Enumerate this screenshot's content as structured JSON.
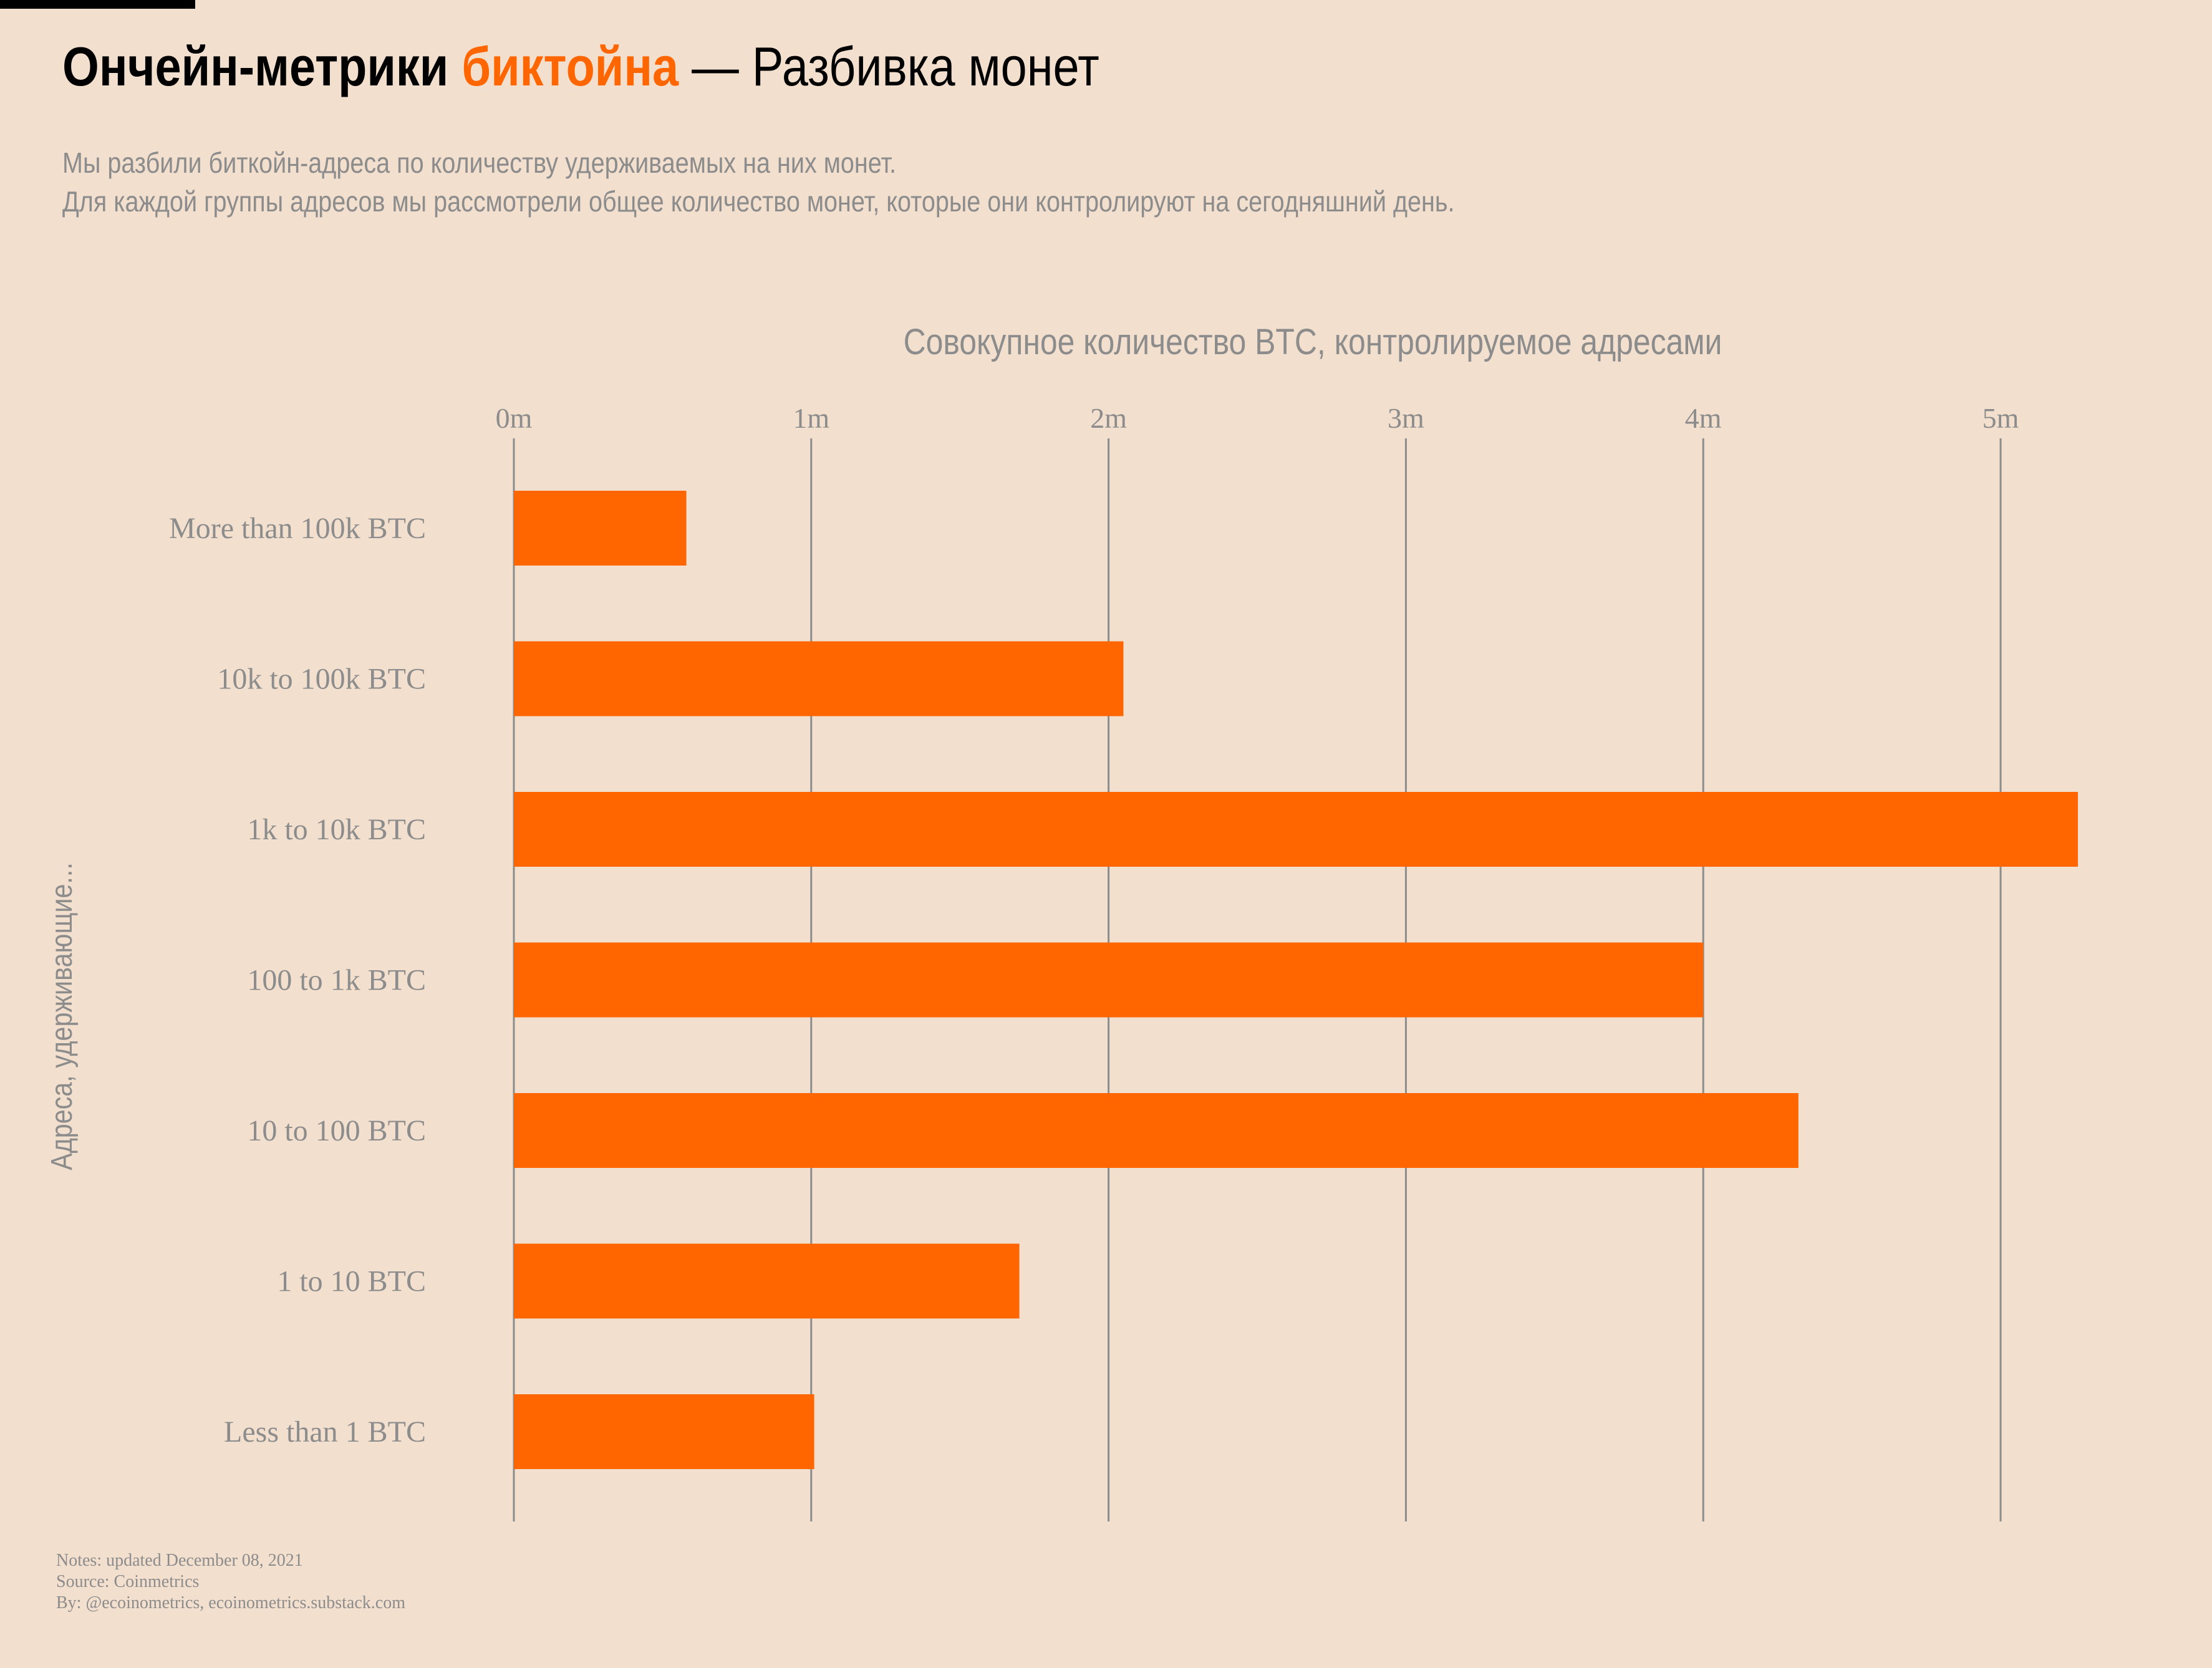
{
  "header": {
    "title_bold": "Ончейн-метрики",
    "title_accent": "биктойна",
    "title_rest": "— Разбивка монет",
    "subtitle_line1": "Мы разбили биткойн-адреса по количеству удерживаемых на них монет.",
    "subtitle_line2": "Для каждой группы адресов мы рассмотрели общее количество монет, которые они контролируют на сегодняшний день."
  },
  "notes": {
    "line1": "Notes: updated December 08, 2021",
    "line2": "Source: Coinmetrics",
    "line3": "By: @ecoinometrics, ecoinometrics.substack.com"
  },
  "colors": {
    "background": "#f2dfce",
    "bar": "#ff6600",
    "accent": "#ff6600",
    "gridline": "#8c8c8c",
    "muted_text": "#8c8c8c"
  },
  "chart_data": {
    "type": "bar",
    "orientation": "horizontal",
    "xlabel": "Совокупное количество BTC, контролируемое адресами",
    "ylabel": "Адреса, удерживающие...",
    "xaxis_position": "top",
    "xlim": [
      0,
      5400000
    ],
    "xticks": [
      0,
      1000000,
      2000000,
      3000000,
      4000000,
      5000000
    ],
    "xtick_labels": [
      "0m",
      "1m",
      "2m",
      "3m",
      "4m",
      "5m"
    ],
    "grid": "vertical",
    "categories": [
      "More than 100k BTC",
      "10k to 100k BTC",
      "1k to 10k BTC",
      "100 to 1k BTC",
      "10 to 100 BTC",
      "1 to 10 BTC",
      "Less than 1 BTC"
    ],
    "values": [
      580000,
      2050000,
      5260000,
      4000000,
      4320000,
      1700000,
      1010000
    ]
  }
}
